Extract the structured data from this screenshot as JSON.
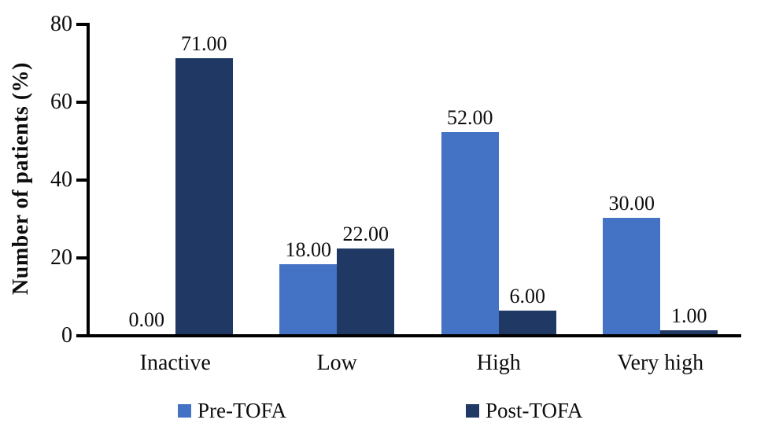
{
  "chart_data": {
    "type": "bar",
    "title": "",
    "xlabel": "",
    "ylabel": "Number of patients (%)",
    "categories": [
      "Inactive",
      "Low",
      "High",
      "Very high"
    ],
    "series": [
      {
        "name": "Pre-TOFA",
        "color": "#4472C4",
        "values": [
          0,
          18,
          52,
          30
        ],
        "value_labels": [
          "0.00",
          "18.00",
          "52.00",
          "30.00"
        ]
      },
      {
        "name": "Post-TOFA",
        "color": "#203864",
        "values": [
          71,
          22,
          6,
          1
        ],
        "value_labels": [
          "71.00",
          "22.00",
          "6.00",
          "1.00"
        ]
      }
    ],
    "y_axis": {
      "min": 0,
      "max": 80,
      "tick_interval": 20,
      "ticks": [
        0,
        20,
        40,
        60,
        80
      ],
      "tick_labels": [
        "0",
        "20",
        "40",
        "60",
        "80"
      ]
    },
    "grid": false,
    "legend_position": "bottom",
    "axis_color": "#000000",
    "label_color": "#0d0d0d"
  }
}
